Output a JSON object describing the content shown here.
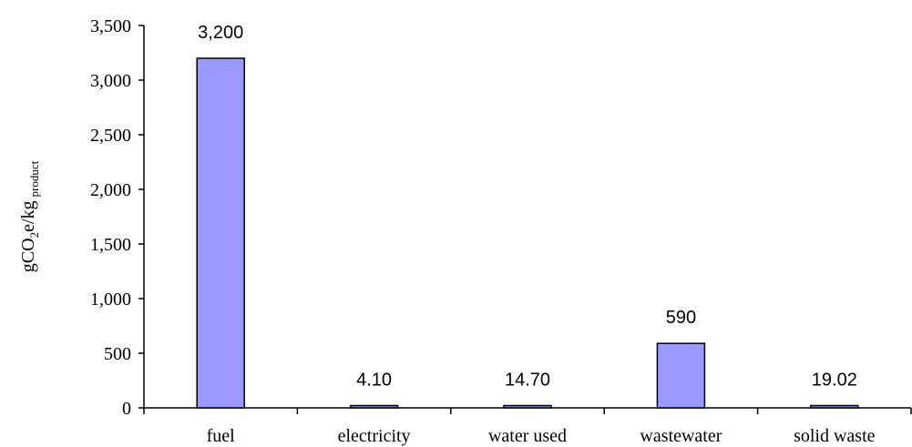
{
  "chart_data": {
    "type": "bar",
    "categories": [
      "fuel",
      "electricity",
      "water used",
      "wastewater",
      "solid waste"
    ],
    "values": [
      3200,
      4.1,
      14.7,
      590,
      19.02
    ],
    "data_labels": [
      "3,200",
      "4.10",
      "14.70",
      "590",
      "19.02"
    ],
    "ylabel": {
      "base": "gCO",
      "sub1": "2",
      "mid": "e/kg",
      "sub2": "product"
    },
    "ylim": [
      0,
      3500
    ],
    "yticks": [
      0,
      500,
      1000,
      1500,
      2000,
      2500,
      3000,
      3500
    ],
    "ytick_labels": [
      "0",
      "500",
      "1,000",
      "1,500",
      "2,000",
      "2,500",
      "3,000",
      "3,500"
    ],
    "grid": false,
    "legend": "none",
    "bar_color": "#9999ff",
    "bar_stroke": "#000000"
  }
}
